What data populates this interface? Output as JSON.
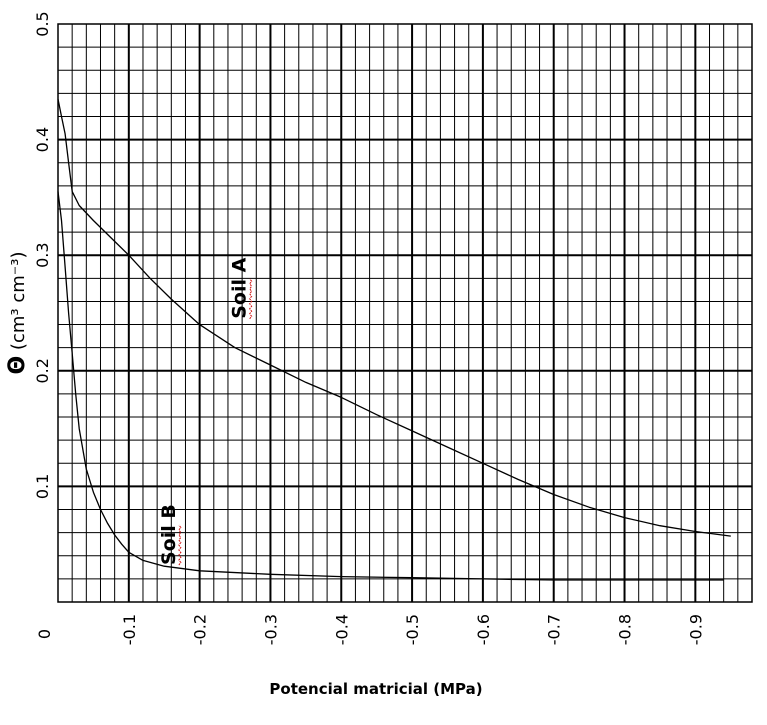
{
  "chart_data": {
    "type": "line",
    "title": "",
    "xlabel": "Potencial matricial (MPa)",
    "ylabel": {
      "symbol": "Θ",
      "text": " (cm³ cm⁻³)"
    },
    "xlim": [
      0,
      -0.98
    ],
    "ylim": [
      0,
      0.5
    ],
    "x_ticks": [
      -0.1,
      -0.2,
      -0.3,
      -0.4,
      -0.5,
      -0.6,
      -0.7,
      -0.8,
      -0.9
    ],
    "x_tick_labels": [
      "-0.1",
      "-0.2",
      "-0.3",
      "-0.4",
      "-0.5",
      "-0.6",
      "-0.7",
      "-0.8",
      "-0.9"
    ],
    "y_ticks": [
      0,
      0.1,
      0.2,
      0.3,
      0.4,
      0.5
    ],
    "y_tick_labels": [
      "0",
      "0.1",
      "0.2",
      "0.3",
      "0.4",
      "0.5"
    ],
    "grid": {
      "major_x": 0.1,
      "minor_x": 0.02,
      "major_y": 0.1,
      "minor_y": 0.02
    },
    "series": [
      {
        "name": "Soil A",
        "x": [
          0,
          -0.005,
          -0.01,
          -0.015,
          -0.02,
          -0.03,
          -0.05,
          -0.075,
          -0.1,
          -0.13,
          -0.16,
          -0.2,
          -0.25,
          -0.3,
          -0.35,
          -0.4,
          -0.45,
          -0.5,
          -0.55,
          -0.6,
          -0.65,
          -0.7,
          -0.75,
          -0.8,
          -0.85,
          -0.9,
          -0.95
        ],
        "y": [
          0.435,
          0.42,
          0.405,
          0.38,
          0.355,
          0.343,
          0.33,
          0.315,
          0.3,
          0.28,
          0.262,
          0.24,
          0.22,
          0.205,
          0.19,
          0.177,
          0.162,
          0.148,
          0.134,
          0.12,
          0.106,
          0.093,
          0.082,
          0.073,
          0.066,
          0.061,
          0.057
        ]
      },
      {
        "name": "Soil B",
        "x": [
          0,
          -0.005,
          -0.01,
          -0.015,
          -0.02,
          -0.025,
          -0.03,
          -0.04,
          -0.05,
          -0.06,
          -0.07,
          -0.08,
          -0.09,
          -0.1,
          -0.12,
          -0.15,
          -0.2,
          -0.3,
          -0.4,
          -0.5,
          -0.6,
          -0.7,
          -0.8,
          -0.9,
          -0.94
        ],
        "y": [
          0.355,
          0.33,
          0.29,
          0.25,
          0.215,
          0.18,
          0.15,
          0.115,
          0.095,
          0.08,
          0.068,
          0.058,
          0.05,
          0.043,
          0.036,
          0.031,
          0.027,
          0.024,
          0.022,
          0.021,
          0.02,
          0.019,
          0.019,
          0.019,
          0.019
        ]
      }
    ],
    "annotations": [
      {
        "text": "Soil A",
        "x": -0.265,
        "y": 0.245
      },
      {
        "text": "Soil B",
        "x": -0.165,
        "y": 0.032
      }
    ]
  }
}
